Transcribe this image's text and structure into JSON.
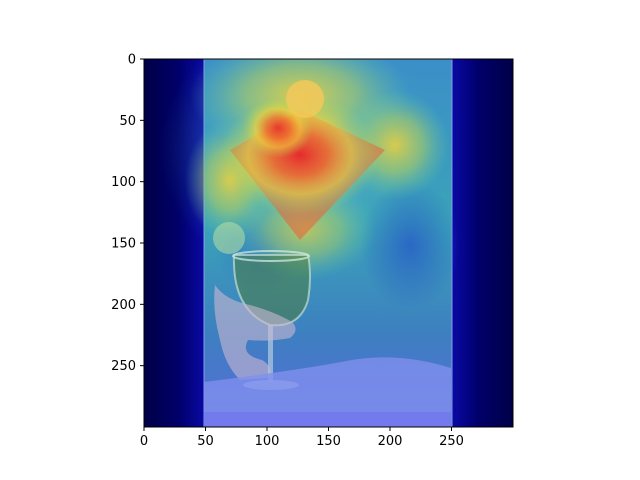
{
  "chart_data": {
    "type": "heatmap",
    "title": "",
    "xlabel": "",
    "ylabel": "",
    "xlim": [
      0,
      300
    ],
    "ylim": [
      300,
      0
    ],
    "y_inverted": true,
    "xticks": [
      0,
      50,
      100,
      150,
      200,
      250
    ],
    "yticks": [
      0,
      50,
      100,
      150,
      200,
      250
    ],
    "xtick_labels": [
      "0",
      "50",
      "100",
      "150",
      "200",
      "250"
    ],
    "ytick_labels": [
      "0",
      "50",
      "100",
      "150",
      "200",
      "250"
    ],
    "colormap": "jet",
    "overlay": "photo of a hand holding a wine glass",
    "photo_region_x": [
      50,
      250
    ],
    "hotspots": [
      {
        "x": 130,
        "y": 75,
        "intensity": 1.0
      },
      {
        "x": 110,
        "y": 55,
        "intensity": 0.9
      },
      {
        "x": 130,
        "y": 35,
        "intensity": 0.8
      },
      {
        "x": 85,
        "y": 95,
        "intensity": 0.7
      },
      {
        "x": 190,
        "y": 75,
        "intensity": 0.55
      },
      {
        "x": 130,
        "y": 140,
        "intensity": 0.6
      },
      {
        "x": 70,
        "y": 145,
        "intensity": 0.35
      }
    ],
    "grid": false
  },
  "colors": {
    "cold_dark": "#000066",
    "cold": "#0a0aa8",
    "background": "#ffffff"
  }
}
